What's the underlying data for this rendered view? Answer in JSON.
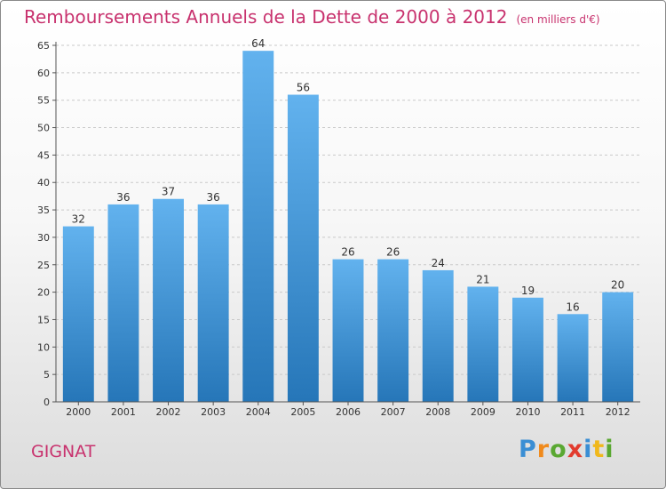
{
  "header": {
    "title": "Remboursements Annuels de la Dette de 2000 à 2012",
    "unit": "(en milliers d'€)"
  },
  "footer": {
    "commune": "GIGNAT",
    "logo": "Proxiti"
  },
  "colors": {
    "title": "#c8326e",
    "bar_light": "#62b2ee",
    "bar_dark": "#2676b8",
    "grid": "#c9c9c9"
  },
  "chart_data": {
    "type": "bar",
    "title": "Remboursements Annuels de la Dette de 2000 à 2012",
    "subtitle": "(en milliers d'€)",
    "xlabel": "",
    "ylabel": "",
    "categories": [
      "2000",
      "2001",
      "2002",
      "2003",
      "2004",
      "2005",
      "2006",
      "2007",
      "2008",
      "2009",
      "2010",
      "2011",
      "2012"
    ],
    "values": [
      32,
      36,
      37,
      36,
      64,
      56,
      26,
      26,
      24,
      21,
      19,
      16,
      20
    ],
    "ylim": [
      0,
      65
    ],
    "yticks": [
      0,
      5,
      10,
      15,
      20,
      25,
      30,
      35,
      40,
      45,
      50,
      55,
      60,
      65
    ],
    "grid": "dashed horizontal",
    "legend": "none"
  }
}
